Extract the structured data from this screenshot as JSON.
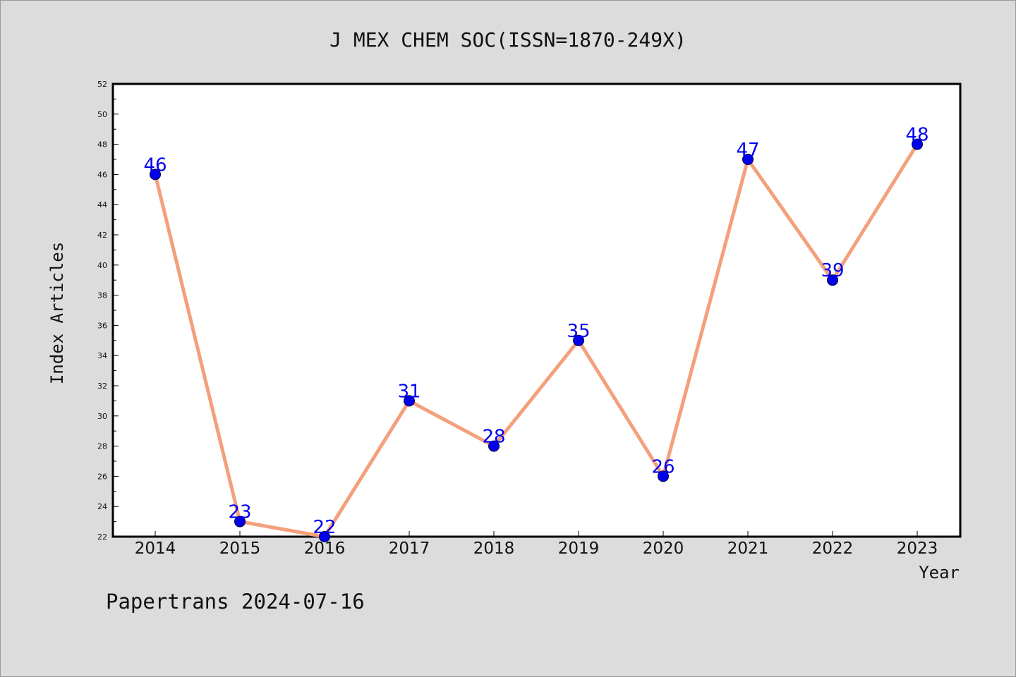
{
  "chart_data": {
    "type": "line",
    "title": "J MEX CHEM SOC(ISSN=1870-249X)",
    "xlabel": "Year",
    "ylabel": "Index Articles",
    "categories": [
      "2014",
      "2015",
      "2016",
      "2017",
      "2018",
      "2019",
      "2020",
      "2021",
      "2022",
      "2023"
    ],
    "series": [
      {
        "values": [
          46,
          23,
          22,
          31,
          28,
          35,
          26,
          47,
          39,
          48
        ]
      }
    ],
    "ylim": [
      22,
      52
    ],
    "yticks": [
      22,
      24,
      26,
      28,
      30,
      32,
      34,
      36,
      38,
      40,
      42,
      44,
      46,
      48,
      50,
      52
    ],
    "grid": false,
    "line_color": "#f4a07c",
    "marker_color": "#0000ee",
    "label_color": "#0000ee"
  },
  "footer": "Papertrans 2024-07-16"
}
